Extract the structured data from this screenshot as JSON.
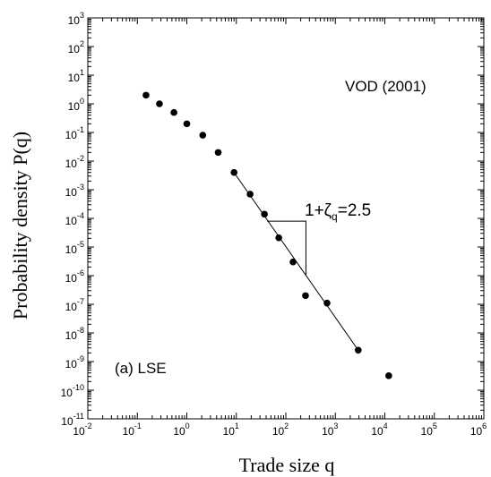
{
  "chart_data": {
    "type": "scatter",
    "title": "",
    "xlabel": "Trade size q",
    "ylabel": "Probability density P(q)",
    "xscale": "log",
    "yscale": "log",
    "xlim": [
      0.01,
      1000000
    ],
    "ylim": [
      1e-11,
      1000
    ],
    "grid": false,
    "x_ticks": [
      "10",
      "10",
      "10",
      "10",
      "10",
      "10",
      "10",
      "10",
      "10"
    ],
    "x_tick_exponents": [
      "-2",
      "-1",
      "0",
      "1",
      "2",
      "3",
      "4",
      "5",
      "6"
    ],
    "y_ticks": [
      "10",
      "10",
      "10",
      "10",
      "10",
      "10",
      "10",
      "10",
      "10",
      "10",
      "10",
      "10",
      "10",
      "10",
      "10"
    ],
    "y_tick_exponents": [
      "-11",
      "-10",
      "-9",
      "-8",
      "-7",
      "-6",
      "-5",
      "-4",
      "-3",
      "-2",
      "-1",
      "0",
      "1",
      "2",
      "3"
    ],
    "series": [
      {
        "marker": "filled-circle",
        "color": "#000000",
        "points": [
          {
            "x": 0.15,
            "y": 2.0
          },
          {
            "x": 0.28,
            "y": 1.0
          },
          {
            "x": 0.55,
            "y": 0.5
          },
          {
            "x": 1.0,
            "y": 0.2
          },
          {
            "x": 2.1,
            "y": 0.08
          },
          {
            "x": 4.3,
            "y": 0.02
          },
          {
            "x": 9.0,
            "y": 0.004
          },
          {
            "x": 19,
            "y": 0.0007
          },
          {
            "x": 37,
            "y": 0.00014
          },
          {
            "x": 72,
            "y": 2.1e-05
          },
          {
            "x": 140,
            "y": 3e-06
          },
          {
            "x": 250,
            "y": 2e-07
          },
          {
            "x": 680,
            "y": 1.1e-07
          },
          {
            "x": 2900,
            "y": 2.5e-09
          },
          {
            "x": 12000,
            "y": 3.2e-10
          }
        ]
      }
    ],
    "fit_line": {
      "slope": -2.5,
      "from": {
        "x": 9.0,
        "y": 0.004
      },
      "to": {
        "x": 2900,
        "y": 2.5e-09
      }
    },
    "slope_marker": {
      "corner": {
        "x": 255,
        "y": 1e-06
      },
      "top": {
        "x": 255,
        "y": 8e-05
      },
      "left": {
        "x": 42,
        "y": 8e-05
      }
    },
    "annotations": {
      "dataset": "VOD (2001)",
      "panel": "(a) LSE",
      "slope_prefix": "1+ζ",
      "slope_sub": "q",
      "slope_suffix": "=2.5"
    }
  }
}
